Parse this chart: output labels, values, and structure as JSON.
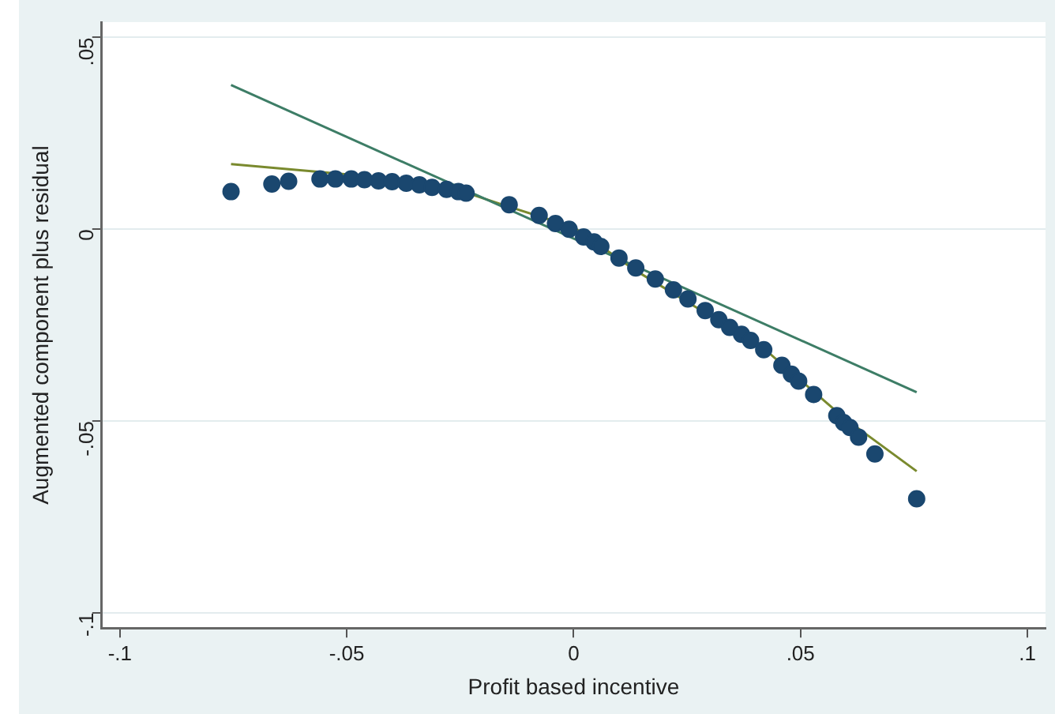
{
  "chart_data": {
    "type": "scatter",
    "xlabel": "Profit based incentive",
    "ylabel": "Augmented component plus residual",
    "xlim": [
      -0.104,
      0.104
    ],
    "ylim": [
      -0.104,
      0.054
    ],
    "xticks": [
      {
        "value": -0.1,
        "label": "-.1"
      },
      {
        "value": -0.05,
        "label": "-.05"
      },
      0,
      {
        "value": 0.05,
        "label": ".05"
      },
      {
        "value": 0.1,
        "label": ".1"
      }
    ],
    "yticks": [
      {
        "value": -0.1,
        "label": "-.1"
      },
      {
        "value": -0.05,
        "label": "-.05"
      },
      0,
      {
        "value": 0.05,
        "label": ".05"
      }
    ],
    "grid": "y",
    "legend": false,
    "marker": "circle",
    "series": [
      {
        "type": "scatter",
        "color": "#1a476f",
        "x": [
          -0.0755,
          -0.0665,
          -0.0628,
          -0.0559,
          -0.0525,
          -0.049,
          -0.0461,
          -0.043,
          -0.04,
          -0.0369,
          -0.034,
          -0.0312,
          -0.028,
          -0.0254,
          -0.0237,
          -0.0142,
          -0.0076,
          -0.004,
          -0.001,
          0.0022,
          0.0045,
          0.006,
          0.01,
          0.0137,
          0.018,
          0.022,
          0.0252,
          0.029,
          0.032,
          0.0344,
          0.037,
          0.039,
          0.0419,
          0.0459,
          0.048,
          0.0496,
          0.0529,
          0.058,
          0.0595,
          0.0609,
          0.0628,
          0.0664,
          0.0756
        ],
        "values": [
          0.0098,
          0.0118,
          0.0125,
          0.0131,
          0.0131,
          0.0131,
          0.0129,
          0.0126,
          0.0124,
          0.012,
          0.0116,
          0.0109,
          0.0104,
          0.0098,
          0.0094,
          0.0064,
          0.0036,
          0.0015,
          0,
          -0.002,
          -0.0033,
          -0.0045,
          -0.0075,
          -0.0101,
          -0.013,
          -0.0158,
          -0.0182,
          -0.0212,
          -0.0236,
          -0.0256,
          -0.0274,
          -0.029,
          -0.0314,
          -0.0355,
          -0.0378,
          -0.0396,
          -0.0431,
          -0.0486,
          -0.0504,
          -0.0517,
          -0.0542,
          -0.0586,
          -0.0703
        ]
      },
      {
        "type": "line",
        "color": "#3d7d66",
        "marker": "none",
        "x": [
          -0.0755,
          0.0756
        ],
        "values": [
          0.0376,
          -0.0425
        ]
      },
      {
        "type": "line",
        "color": "#7a8a2e",
        "marker": "none",
        "x": [
          -0.0755,
          -0.05,
          -0.0254,
          -0.0162,
          0,
          0.0137,
          0.0287,
          0.0425,
          0.0597,
          0.0756
        ],
        "values": [
          0.017,
          0.0143,
          0.0102,
          0.0066,
          0.0005,
          -0.0108,
          -0.0216,
          -0.0317,
          -0.0493,
          -0.0631
        ]
      }
    ]
  }
}
